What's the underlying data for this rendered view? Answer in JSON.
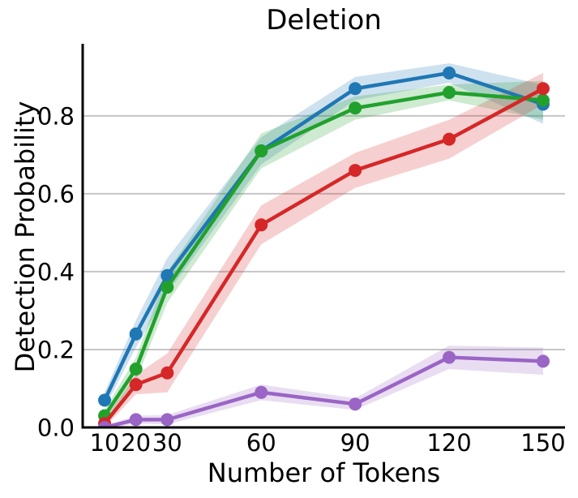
{
  "chart_data": {
    "type": "line",
    "title": "Deletion",
    "xlabel": "Number of Tokens",
    "ylabel": "Detection Probability",
    "x": [
      10,
      20,
      30,
      60,
      90,
      120,
      150
    ],
    "xticks": [
      10,
      20,
      30,
      60,
      90,
      120,
      150
    ],
    "xticklabels": [
      "10",
      "20",
      "30",
      "60",
      "90",
      "120",
      "150"
    ],
    "yticks": [
      0.0,
      0.2,
      0.4,
      0.6,
      0.8
    ],
    "yticklabels": [
      "0.0",
      "0.2",
      "0.4",
      "0.6",
      "0.8"
    ],
    "xlim": [
      3,
      157
    ],
    "ylim": [
      0,
      0.985
    ],
    "grid": "horizontal",
    "grid_color": "#c6c6c6",
    "axis_color": "#000000",
    "legend": "none",
    "marker": "circle",
    "band_opacity": 0.22,
    "series": [
      {
        "name": "blue",
        "color": "#1f77b4",
        "values": [
          0.07,
          0.24,
          0.39,
          0.71,
          0.87,
          0.91,
          0.83
        ],
        "band_halfwidth": [
          0.02,
          0.035,
          0.045,
          0.035,
          0.03,
          0.025,
          0.05
        ]
      },
      {
        "name": "green",
        "color": "#21a12c",
        "values": [
          0.03,
          0.15,
          0.36,
          0.71,
          0.82,
          0.86,
          0.84
        ],
        "band_halfwidth": [
          0.015,
          0.03,
          0.04,
          0.045,
          0.03,
          0.02,
          0.05
        ]
      },
      {
        "name": "red",
        "color": "#d62728",
        "values": [
          0.01,
          0.11,
          0.14,
          0.52,
          0.66,
          0.74,
          0.87
        ],
        "band_halfwidth": [
          0.01,
          0.025,
          0.05,
          0.05,
          0.045,
          0.05,
          0.04
        ]
      },
      {
        "name": "purple",
        "color": "#9a65c5",
        "values": [
          0.0,
          0.02,
          0.02,
          0.09,
          0.06,
          0.18,
          0.17
        ],
        "band_halfwidth": [
          0.005,
          0.01,
          0.012,
          0.02,
          0.015,
          0.03,
          0.035
        ]
      }
    ]
  }
}
